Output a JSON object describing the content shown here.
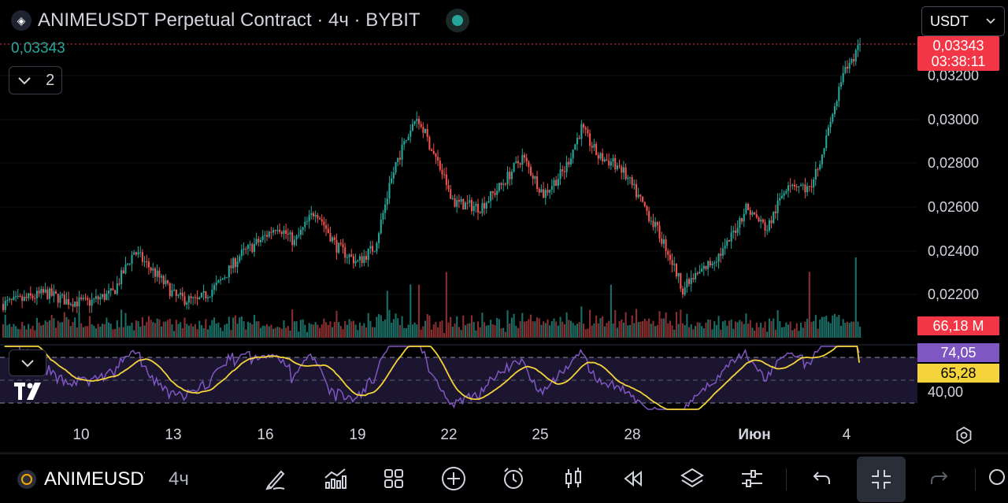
{
  "header": {
    "title": "ANIMEUSDT Perpetual Contract · 4ч · BYBIT",
    "last_value": "0,03343",
    "collapse_count": "2",
    "currency": "USDT"
  },
  "price_tag": {
    "price": "0,03343",
    "countdown": "03:38:11",
    "color": "#f23645"
  },
  "volume_tag": {
    "value": "66,18 M"
  },
  "rsi_tags": {
    "rsi": "74,05",
    "ma": "65,28",
    "level": "40,00",
    "rsi_color": "#7e57c2",
    "ma_color": "#f5d33a"
  },
  "y_axis": [
    "0,03200",
    "0,03000",
    "0,02800",
    "0,02600",
    "0,02400",
    "0,02200"
  ],
  "x_axis": [
    "10",
    "13",
    "16",
    "19",
    "22",
    "25",
    "28",
    "Июн",
    "4"
  ],
  "colors": {
    "up": "#26a69a",
    "down": "#ef5350",
    "rsi": "#7e57c2",
    "rsi_ma": "#f5d33a"
  },
  "toolbar": {
    "symbol": "ANIMEUSDT",
    "timeframe": "4ч",
    "tools": [
      "brush-icon",
      "indicators-icon",
      "layouts-icon",
      "add-icon",
      "alert-icon",
      "candles-icon",
      "replay-icon",
      "layers-icon",
      "settings-sliders-icon",
      "undo-icon",
      "collapse-icon",
      "redo-icon"
    ]
  },
  "chart_data": {
    "type": "candlestick",
    "symbol": "ANIMEUSDT",
    "timeframe": "4h",
    "y_range": [
      0.021,
      0.0336
    ],
    "x_ticks": [
      "10",
      "13",
      "16",
      "19",
      "22",
      "25",
      "28",
      "Июн",
      "4"
    ],
    "price_waypoints": [
      [
        0,
        0.0216
      ],
      [
        10,
        0.0218
      ],
      [
        20,
        0.0221
      ],
      [
        30,
        0.02175
      ],
      [
        40,
        0.02165
      ],
      [
        52,
        0.0221
      ],
      [
        62,
        0.024
      ],
      [
        72,
        0.023
      ],
      [
        82,
        0.0219
      ],
      [
        92,
        0.0217
      ],
      [
        102,
        0.0225
      ],
      [
        112,
        0.0238
      ],
      [
        122,
        0.0245
      ],
      [
        130,
        0.0252
      ],
      [
        138,
        0.0244
      ],
      [
        148,
        0.0259
      ],
      [
        158,
        0.0242
      ],
      [
        168,
        0.0235
      ],
      [
        176,
        0.0242
      ],
      [
        186,
        0.028
      ],
      [
        196,
        0.0302
      ],
      [
        206,
        0.028
      ],
      [
        214,
        0.0262
      ],
      [
        226,
        0.026
      ],
      [
        236,
        0.027
      ],
      [
        246,
        0.0283
      ],
      [
        256,
        0.0266
      ],
      [
        266,
        0.0277
      ],
      [
        274,
        0.0296
      ],
      [
        282,
        0.0283
      ],
      [
        292,
        0.0279
      ],
      [
        304,
        0.026
      ],
      [
        314,
        0.0242
      ],
      [
        322,
        0.0223
      ],
      [
        332,
        0.0232
      ],
      [
        342,
        0.0241
      ],
      [
        352,
        0.026
      ],
      [
        362,
        0.025
      ],
      [
        372,
        0.0272
      ],
      [
        382,
        0.0268
      ],
      [
        390,
        0.0291
      ],
      [
        398,
        0.032
      ],
      [
        404,
        0.033
      ],
      [
        406,
        0.03343
      ]
    ],
    "volume_last": "66,18 M",
    "rsi": {
      "period": 14,
      "last": 74.05,
      "ma_last": 65.28,
      "levels": [
        70,
        50,
        30
      ]
    }
  }
}
